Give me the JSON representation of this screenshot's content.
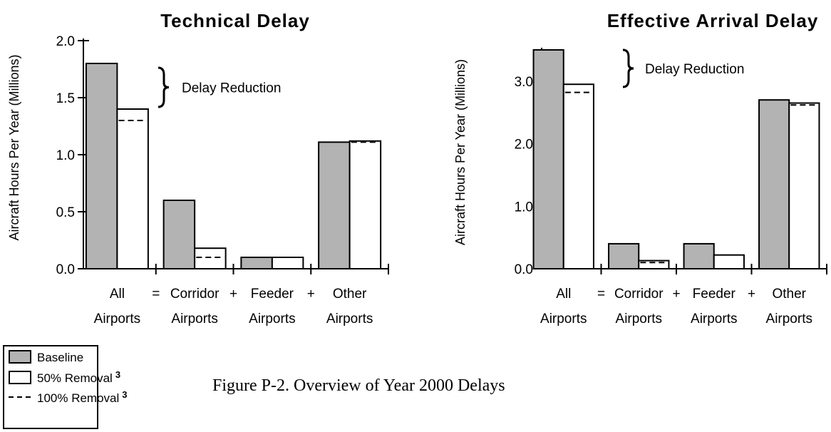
{
  "chart_data": [
    {
      "type": "bar",
      "title": "Technical Delay",
      "ylabel": "Aircraft Hours Per Year (Millions)",
      "categories": [
        "All Airports",
        "Corridor Airports",
        "Feeder Airports",
        "Other Airports"
      ],
      "operators": [
        "=",
        "+",
        "+"
      ],
      "series": [
        {
          "name": "Baseline",
          "color": "#b3b3b3",
          "values": [
            1.8,
            0.6,
            0.1,
            1.11
          ]
        },
        {
          "name": "50% Removal",
          "note": "3",
          "color": "#ffffff",
          "values": [
            1.4,
            0.18,
            0.1,
            1.12
          ]
        },
        {
          "name": "100% Removal",
          "note": "3",
          "color": "#000000",
          "style": "dashed",
          "values": [
            1.3,
            0.1,
            0.1,
            1.11
          ]
        }
      ],
      "ylim": [
        0,
        2.0
      ],
      "yticks": [
        {
          "value": 0,
          "label": "0.0"
        },
        0.5,
        {
          "value": 1.0,
          "label": "1.0"
        },
        1.5,
        {
          "value": 2.0,
          "label": "2.0"
        }
      ],
      "annotation": "Delay Reduction"
    },
    {
      "type": "bar",
      "title": "Effective Arrival Delay",
      "ylabel": "Aircraft Hours Per Year (Millions)",
      "categories": [
        "All Airports",
        "Corridor Airports",
        "Feeder Airports",
        "Other Airports"
      ],
      "operators": [
        "=",
        "+",
        "+"
      ],
      "series": [
        {
          "name": "Baseline",
          "color": "#b3b3b3",
          "values": [
            3.5,
            0.4,
            0.4,
            2.7
          ]
        },
        {
          "name": "50% Removal",
          "note": "3",
          "color": "#ffffff",
          "values": [
            2.95,
            0.13,
            0.22,
            2.65
          ]
        },
        {
          "name": "100% Removal",
          "note": "3",
          "color": "#000000",
          "style": "dashed",
          "values": [
            2.82,
            0.1,
            null,
            2.62
          ]
        }
      ],
      "ylim": [
        0,
        3.5
      ],
      "yticks": [
        {
          "value": 0,
          "label": "0.0"
        },
        {
          "value": 1.0,
          "label": "1.0"
        },
        {
          "value": 2.0,
          "label": "2.0"
        },
        {
          "value": 3.0,
          "label": "3.0"
        }
      ],
      "minor_yticks": [
        0.5,
        1.5,
        2.5
      ],
      "annotation": "Delay Reduction"
    }
  ],
  "caption": "Figure P-2.  Overview of Year 2000 Delays"
}
